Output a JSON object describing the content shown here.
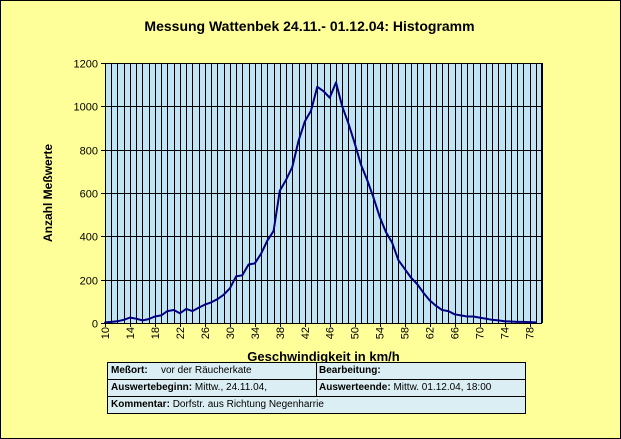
{
  "title": "Messung Wattenbek 24.11.- 01.12.04: Histogramm",
  "chart_data": {
    "type": "line",
    "title": "Messung Wattenbek 24.11.- 01.12.04: Histogramm",
    "xlabel": "Geschwindigkeit in km/h",
    "ylabel": "Anzahl Meßwerte",
    "ylim": [
      0,
      1200
    ],
    "yticks": [
      0,
      200,
      400,
      600,
      800,
      1000,
      1200
    ],
    "xlim": [
      10,
      80
    ],
    "xticks": [
      10,
      14,
      18,
      22,
      26,
      30,
      34,
      38,
      42,
      46,
      50,
      54,
      58,
      62,
      66,
      70,
      74,
      78
    ],
    "grid": true,
    "colors": {
      "plot_bg": "#c0e4f4",
      "line": "#000080",
      "grid": "#000000",
      "frame_bg": "#ffff99"
    },
    "series": [
      {
        "x": [
          10,
          11,
          12,
          13,
          14,
          15,
          16,
          17,
          18,
          19,
          20,
          21,
          22,
          23,
          24,
          25,
          26,
          27,
          28,
          29,
          30,
          31,
          32,
          33,
          34,
          35,
          36,
          37,
          38,
          39,
          40,
          41,
          42,
          43,
          44,
          45,
          46,
          47,
          48,
          49,
          50,
          51,
          52,
          53,
          54,
          55,
          56,
          57,
          58,
          59,
          60,
          61,
          62,
          63,
          64,
          65,
          66,
          67,
          68,
          69,
          70,
          71,
          72,
          73,
          74,
          75,
          76,
          77,
          78,
          79
        ],
        "values": [
          3,
          5,
          8,
          15,
          25,
          20,
          12,
          18,
          30,
          35,
          55,
          60,
          45,
          65,
          55,
          70,
          85,
          95,
          110,
          130,
          160,
          215,
          220,
          270,
          275,
          320,
          380,
          425,
          610,
          660,
          720,
          840,
          930,
          980,
          1090,
          1070,
          1040,
          1110,
          1000,
          920,
          830,
          730,
          660,
          580,
          490,
          420,
          370,
          290,
          250,
          210,
          180,
          140,
          105,
          80,
          60,
          55,
          40,
          35,
          30,
          30,
          25,
          20,
          15,
          12,
          8,
          7,
          5,
          5,
          4,
          3
        ]
      }
    ]
  },
  "info": {
    "messort_label": "Meßort:",
    "messort_value": "vor der Räucherkate",
    "bearbeitung_label": "Bearbeitung:",
    "bearbeitung_value": "",
    "auswertebeginn_label": "Auswertebeginn:",
    "auswertebeginn_value": "Mittw., 24.11.04,",
    "auswerteende_label": "Auswerteende:",
    "auswerteende_value": "Mittw. 01.12.04, 18:00",
    "kommentar_label": "Kommentar:",
    "kommentar_value": "Dorfstr. aus Richtung Negenharrie"
  }
}
